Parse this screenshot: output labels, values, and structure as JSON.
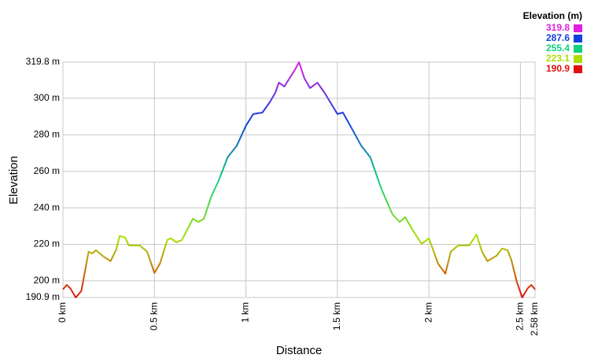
{
  "chart_data": {
    "type": "line",
    "x_label": "Distance",
    "y_label": "Elevation",
    "xlim": [
      0,
      2.58
    ],
    "ylim": [
      190.9,
      319.8
    ],
    "xticks": [
      {
        "value": 0,
        "label": "0 km"
      },
      {
        "value": 0.5,
        "label": "0.5 km"
      },
      {
        "value": 1,
        "label": "1 km"
      },
      {
        "value": 1.5,
        "label": "1.5 km"
      },
      {
        "value": 2,
        "label": "2 km"
      },
      {
        "value": 2.5,
        "label": "2.5 km"
      },
      {
        "value": 2.58,
        "label": "2.58 km"
      }
    ],
    "yticks": [
      {
        "value": 190.9,
        "label": "190.9 m"
      },
      {
        "value": 200,
        "label": "200 m"
      },
      {
        "value": 220,
        "label": "220 m"
      },
      {
        "value": 240,
        "label": "240 m"
      },
      {
        "value": 260,
        "label": "260 m"
      },
      {
        "value": 280,
        "label": "280 m"
      },
      {
        "value": 300,
        "label": "300 m"
      },
      {
        "value": 319.8,
        "label": "319.8 m"
      }
    ],
    "grid": true,
    "legend": {
      "title": "Elevation (m)",
      "items": [
        {
          "value": 319.8,
          "color": "#e020e0"
        },
        {
          "value": 287.6,
          "color": "#1040e0"
        },
        {
          "value": 255.4,
          "color": "#10d080"
        },
        {
          "value": 223.1,
          "color": "#a8e000"
        },
        {
          "value": 190.9,
          "color": "#e01010"
        }
      ]
    },
    "x": [
      0,
      0.02,
      0.04,
      0.07,
      0.1,
      0.12,
      0.14,
      0.16,
      0.18,
      0.22,
      0.26,
      0.29,
      0.31,
      0.34,
      0.36,
      0.39,
      0.42,
      0.46,
      0.5,
      0.53,
      0.57,
      0.59,
      0.62,
      0.65,
      0.71,
      0.74,
      0.77,
      0.81,
      0.85,
      0.9,
      0.95,
      1.0,
      1.04,
      1.09,
      1.13,
      1.16,
      1.18,
      1.21,
      1.27,
      1.29,
      1.32,
      1.35,
      1.39,
      1.43,
      1.5,
      1.53,
      1.57,
      1.63,
      1.68,
      1.74,
      1.8,
      1.84,
      1.87,
      1.91,
      1.96,
      2.0,
      2.05,
      2.09,
      2.12,
      2.16,
      2.22,
      2.26,
      2.29,
      2.32,
      2.37,
      2.4,
      2.43,
      2.45,
      2.48,
      2.51,
      2.54,
      2.56,
      2.58
    ],
    "values": [
      195.3,
      197.8,
      196,
      190.9,
      194.4,
      205,
      216,
      215,
      216.8,
      213.4,
      210.8,
      216.8,
      224.6,
      223.7,
      219.4,
      219.4,
      219.4,
      216,
      204.3,
      209.5,
      222.4,
      223.3,
      221.1,
      222.4,
      234,
      232.3,
      234,
      246.1,
      254.7,
      267.7,
      274,
      285,
      291.4,
      292.2,
      297.8,
      303,
      308.6,
      306.5,
      316,
      319.8,
      310.8,
      305.6,
      308.6,
      303,
      291.4,
      292.2,
      285,
      274,
      267.7,
      250.4,
      236.6,
      232.3,
      234.9,
      228,
      220.3,
      223.3,
      209.5,
      203.9,
      216,
      219.4,
      219.4,
      225.4,
      216,
      210.8,
      213.8,
      217.7,
      216.8,
      211.6,
      199.6,
      190.9,
      196,
      197.8,
      195.3
    ]
  }
}
